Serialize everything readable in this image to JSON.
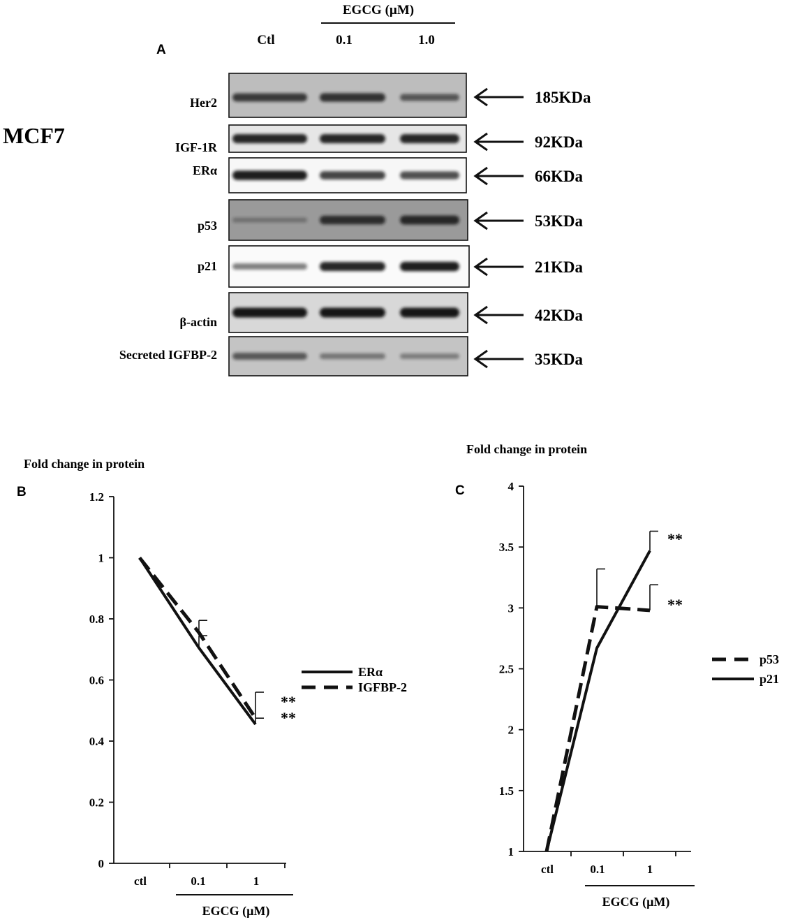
{
  "panel_a": {
    "letter": "A",
    "cell_line": "MCF7",
    "treatment_label": "EGCG (µM)",
    "lanes": [
      "Ctl",
      "0.1",
      "1.0"
    ],
    "blots": [
      {
        "protein": "Her2",
        "size": "185KDa",
        "band_intensity": [
          0.75,
          0.8,
          0.55
        ],
        "background": "#bdbdbd"
      },
      {
        "protein": "IGF-1R",
        "size": "92KDa",
        "band_intensity": [
          0.9,
          0.9,
          0.9
        ],
        "background": "#e6e6e6"
      },
      {
        "protein": "ERα",
        "size": "66KDa",
        "band_intensity": [
          0.95,
          0.75,
          0.7
        ],
        "background": "#f7f7f7"
      },
      {
        "protein": "p53",
        "size": "53KDa",
        "band_intensity": [
          0.2,
          0.8,
          0.85
        ],
        "background": "#9a9a9a"
      },
      {
        "protein": "p21",
        "size": "21KDa",
        "band_intensity": [
          0.45,
          0.9,
          0.95
        ],
        "background": "#fafafa"
      },
      {
        "protein": "β-actin",
        "size": "42KDa",
        "band_intensity": [
          1.0,
          1.0,
          1.0
        ],
        "background": "#d8d8d8"
      },
      {
        "protein": "Secreted IGFBP-2",
        "size": "35KDa",
        "band_intensity": [
          0.55,
          0.35,
          0.3
        ],
        "background": "#c4c4c4"
      }
    ]
  },
  "chart_data": [
    {
      "panel": "B",
      "type": "line",
      "ylabel": "Fold change in protein",
      "xlabel": "EGCG (µM)",
      "categories": [
        "ctl",
        "0.1",
        "1"
      ],
      "yticks": [
        "0",
        "0.2",
        "0.4",
        "0.6",
        "0.8",
        "1",
        "1.2"
      ],
      "ylim": [
        0,
        1.2
      ],
      "series": [
        {
          "name": "ERα",
          "style": "solid",
          "values": [
            1.0,
            0.705,
            0.455
          ],
          "error": [
            0,
            0.04,
            0.02
          ]
        },
        {
          "name": "IGFBP-2",
          "style": "dashed",
          "values": [
            1.0,
            0.755,
            0.475
          ],
          "error": [
            0,
            0.04,
            0.085
          ]
        }
      ],
      "significance": [
        "**",
        "**"
      ],
      "legend_position": "right"
    },
    {
      "panel": "C",
      "type": "line",
      "ylabel": "Fold change in protein",
      "xlabel": "EGCG (µM)",
      "categories": [
        "ctl",
        "0.1",
        "1"
      ],
      "yticks": [
        "1",
        "1.5",
        "2",
        "2.5",
        "3",
        "3.5",
        "4"
      ],
      "ylim": [
        1,
        4
      ],
      "series": [
        {
          "name": "p53",
          "style": "dashed",
          "values": [
            1.0,
            3.01,
            2.98
          ],
          "error": [
            0,
            0.31,
            0.21
          ]
        },
        {
          "name": "p21",
          "style": "solid",
          "values": [
            1.0,
            2.67,
            3.47
          ],
          "error": [
            0,
            0.0,
            0.16
          ]
        }
      ],
      "significance": [
        "**",
        "**"
      ],
      "legend_position": "right"
    }
  ],
  "panel_b": {
    "letter": "B"
  },
  "panel_c": {
    "letter": "C"
  }
}
